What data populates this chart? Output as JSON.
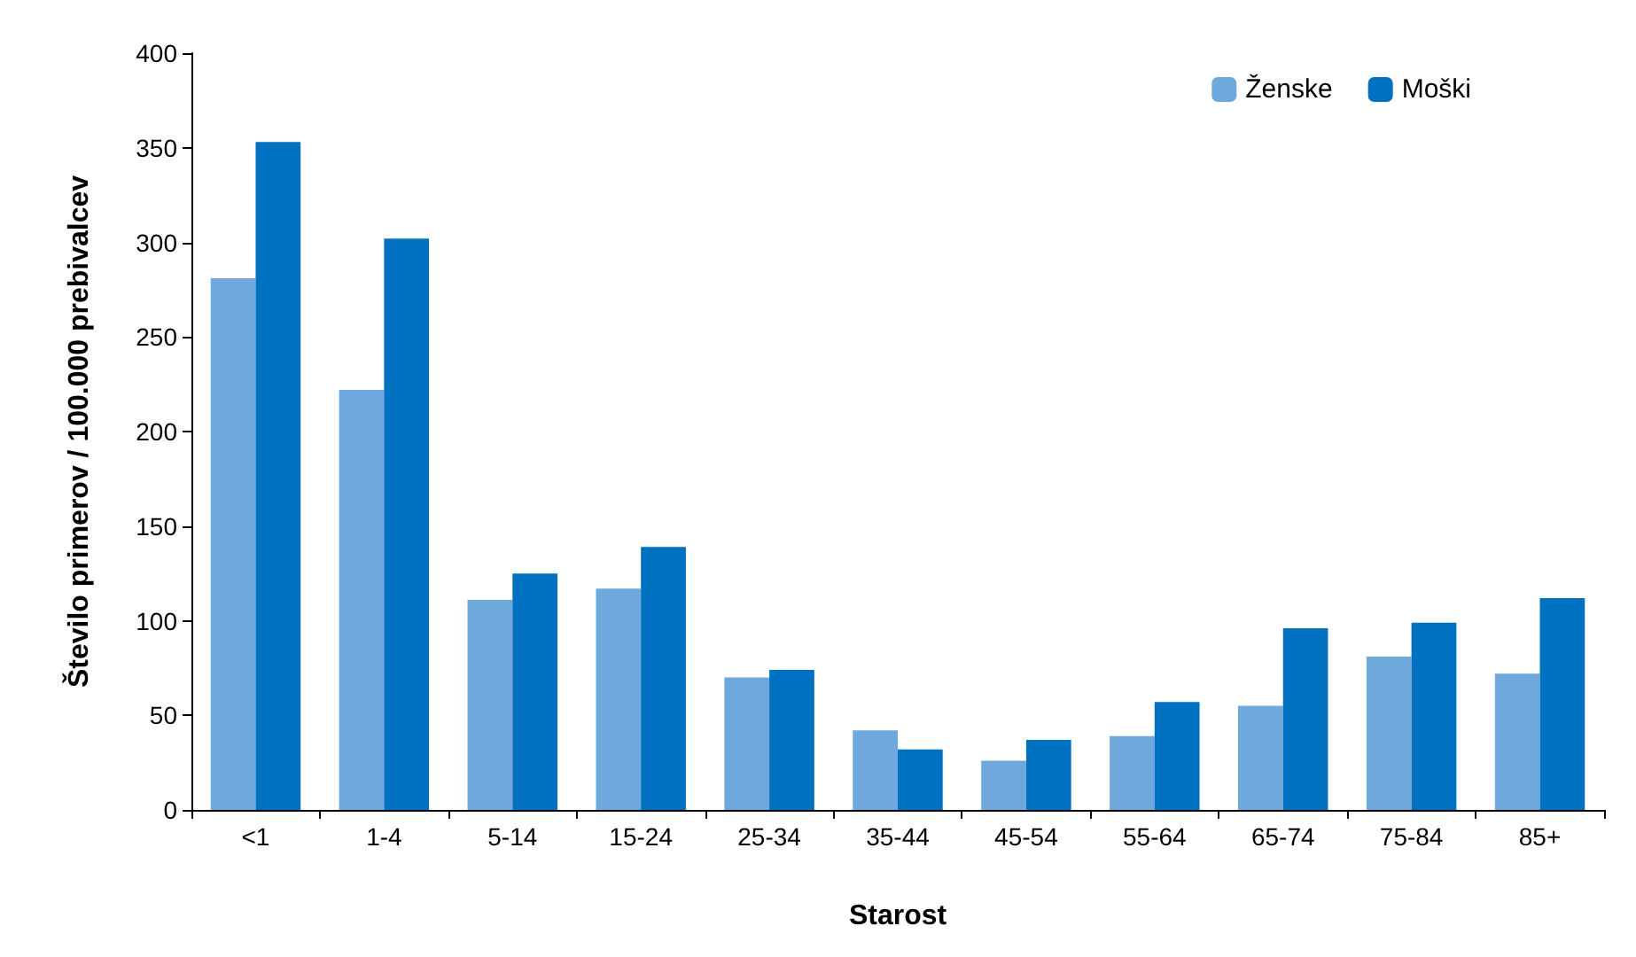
{
  "chart_data": {
    "type": "bar",
    "xlabel": "Starost",
    "ylabel": "Število primerov / 100.000 prebivalcev",
    "categories": [
      "<1",
      "1-4",
      "5-14",
      "15-24",
      "25-34",
      "35-44",
      "45-54",
      "55-64",
      "65-74",
      "75-84",
      "85+"
    ],
    "series": [
      {
        "name": "Ženske",
        "color": "#6fa8dc",
        "values": [
          281,
          222,
          111,
          117,
          70,
          42,
          26,
          39,
          55,
          81,
          72
        ]
      },
      {
        "name": "Moški",
        "color": "#0070c0",
        "values": [
          353,
          302,
          125,
          139,
          74,
          32,
          37,
          57,
          96,
          99,
          112
        ]
      }
    ],
    "ylim": [
      0,
      400
    ],
    "yticks": [
      0,
      50,
      100,
      150,
      200,
      250,
      300,
      350,
      400
    ],
    "grid": false,
    "legend": "top right"
  }
}
